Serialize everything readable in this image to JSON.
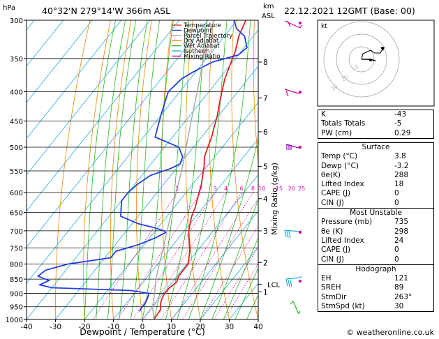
{
  "header": {
    "hpa_label": "hPa",
    "location": "40°32'N  279°14'W  366m  ASL",
    "km_label": "km",
    "asl_label": "ASL",
    "datetime": "22.12.2021  12GMT  (Base: 00)"
  },
  "footer": {
    "copyright": "© weatheronline.co.uk"
  },
  "hodograph": {
    "label": "kt",
    "ring_labels": [
      "10",
      "20",
      "30"
    ]
  },
  "indices": {
    "rows": [
      {
        "label": "K",
        "value": "-43"
      },
      {
        "label": "Totals Totals",
        "value": "-5"
      },
      {
        "label": "PW (cm)",
        "value": "0.29"
      }
    ]
  },
  "surface": {
    "title": "Surface",
    "rows": [
      {
        "label": "Temp (°C)",
        "value": "3.8"
      },
      {
        "label": "Dewp (°C)",
        "value": "-3.2"
      },
      {
        "label": "θe(K)",
        "value": "288"
      },
      {
        "label": "Lifted Index",
        "value": "18"
      },
      {
        "label": "CAPE (J)",
        "value": "0"
      },
      {
        "label": "CIN (J)",
        "value": "0"
      }
    ]
  },
  "most_unstable": {
    "title": "Most Unstable",
    "rows": [
      {
        "label": "Pressure (mb)",
        "value": "735"
      },
      {
        "label": "θe (K)",
        "value": "298"
      },
      {
        "label": "Lifted Index",
        "value": "24"
      },
      {
        "label": "CAPE (J)",
        "value": "0"
      },
      {
        "label": "CIN (J)",
        "value": "0"
      }
    ]
  },
  "hodo_table": {
    "title": "Hodograph",
    "rows": [
      {
        "label": "EH",
        "value": "121"
      },
      {
        "label": "SREH",
        "value": "89"
      },
      {
        "label": "StmDir",
        "value": "263°"
      },
      {
        "label": "StmSpd (kt)",
        "value": "30"
      }
    ]
  },
  "chart_data": {
    "type": "line",
    "title": "",
    "xlabel": "Dewpoint / Temperature (°C)",
    "ylabel": "",
    "secondary_ylabel": "Mixing Ratio (g/kg)",
    "xlim": [
      -40,
      40
    ],
    "ylim": [
      1000,
      300
    ],
    "y_scale": "log",
    "skew": true,
    "x_ticks": [
      -40,
      -30,
      -20,
      -10,
      0,
      10,
      20,
      30,
      40
    ],
    "pressure_ticks": [
      300,
      350,
      400,
      450,
      500,
      550,
      600,
      650,
      700,
      750,
      800,
      850,
      900,
      950,
      1000
    ],
    "km_ticks": [
      {
        "label": "8",
        "p": 355
      },
      {
        "label": "7",
        "p": 410
      },
      {
        "label": "6",
        "p": 470
      },
      {
        "label": "5",
        "p": 540
      },
      {
        "label": "4",
        "p": 615
      },
      {
        "label": "3",
        "p": 700
      },
      {
        "label": "2",
        "p": 795
      },
      {
        "label": "1",
        "p": 895
      }
    ],
    "lcl": {
      "label": "LCL",
      "p": 868
    },
    "mixing_ratio_labels": [
      "1",
      "2",
      "3",
      "4",
      "6",
      "8",
      "10",
      "15",
      "20",
      "25"
    ],
    "legend": {
      "placement": "top-center",
      "entries": [
        {
          "name": "Temperature",
          "color": "#e02020"
        },
        {
          "name": "Dewpoint",
          "color": "#2040e0"
        },
        {
          "name": "Parcel Trajectory",
          "color": "#aaaaaa"
        },
        {
          "name": "Dry Adiabat",
          "color": "#ee8800"
        },
        {
          "name": "Wet Adiabat",
          "color": "#22bb22"
        },
        {
          "name": "Isotherm",
          "color": "#22aadd"
        },
        {
          "name": "Mixing Ratio",
          "color": "#dd00aa"
        }
      ]
    },
    "series": [
      {
        "name": "Temperature",
        "color": "#e02020",
        "points": [
          [
            1000,
            4
          ],
          [
            980,
            3.8
          ],
          [
            960,
            3.5
          ],
          [
            940,
            2
          ],
          [
            920,
            1
          ],
          [
            900,
            0.5
          ],
          [
            880,
            0.6
          ],
          [
            860,
            1.5
          ],
          [
            840,
            0.5
          ],
          [
            820,
            0.5
          ],
          [
            800,
            0.5
          ],
          [
            780,
            -1
          ],
          [
            760,
            -2.5
          ],
          [
            740,
            -4.5
          ],
          [
            720,
            -6.5
          ],
          [
            700,
            -8.5
          ],
          [
            680,
            -10
          ],
          [
            660,
            -11.5
          ],
          [
            640,
            -12.5
          ],
          [
            620,
            -14
          ],
          [
            600,
            -15.5
          ],
          [
            580,
            -17
          ],
          [
            560,
            -19
          ],
          [
            540,
            -21
          ],
          [
            520,
            -23.5
          ],
          [
            500,
            -25
          ],
          [
            480,
            -26.5
          ],
          [
            460,
            -28.5
          ],
          [
            440,
            -30.5
          ],
          [
            420,
            -33
          ],
          [
            400,
            -35.5
          ],
          [
            380,
            -38
          ],
          [
            360,
            -40
          ],
          [
            340,
            -42
          ],
          [
            320,
            -45
          ],
          [
            300,
            -47
          ]
        ]
      },
      {
        "name": "Dewpoint",
        "color": "#2040e0",
        "points": [
          [
            968,
            -3.2
          ],
          [
            955,
            -3.5
          ],
          [
            940,
            -3.5
          ],
          [
            920,
            -4
          ],
          [
            900,
            -5
          ],
          [
            890,
            -12
          ],
          [
            880,
            -40
          ],
          [
            870,
            -45
          ],
          [
            855,
            -43
          ],
          [
            840,
            -48
          ],
          [
            820,
            -47
          ],
          [
            800,
            -41
          ],
          [
            780,
            -28
          ],
          [
            760,
            -28
          ],
          [
            740,
            -22
          ],
          [
            720,
            -18
          ],
          [
            705,
            -16
          ],
          [
            700,
            -17
          ],
          [
            690,
            -22
          ],
          [
            680,
            -28
          ],
          [
            660,
            -36
          ],
          [
            640,
            -38
          ],
          [
            620,
            -40
          ],
          [
            600,
            -40
          ],
          [
            580,
            -39
          ],
          [
            560,
            -37
          ],
          [
            545,
            -32
          ],
          [
            535,
            -30
          ],
          [
            520,
            -31
          ],
          [
            500,
            -35
          ],
          [
            480,
            -46
          ],
          [
            460,
            -48
          ],
          [
            440,
            -50
          ],
          [
            420,
            -52
          ],
          [
            400,
            -54
          ],
          [
            380,
            -53
          ],
          [
            370,
            -51
          ],
          [
            355,
            -47
          ],
          [
            345,
            -40
          ],
          [
            335,
            -39
          ],
          [
            320,
            -43
          ],
          [
            310,
            -48
          ],
          [
            300,
            -51
          ]
        ]
      },
      {
        "name": "Parcel Trajectory",
        "color": "#aaaaaa",
        "points": [
          [
            1000,
            4
          ],
          [
            950,
            0
          ],
          [
            900,
            -3
          ],
          [
            868,
            -5.2
          ],
          [
            850,
            -6.5
          ],
          [
            800,
            -9.5
          ],
          [
            750,
            -12.5
          ],
          [
            700,
            -16
          ],
          [
            650,
            -19.5
          ],
          [
            600,
            -23.5
          ],
          [
            550,
            -27.5
          ],
          [
            500,
            -32.5
          ],
          [
            450,
            -38
          ],
          [
            400,
            -44
          ],
          [
            350,
            -51
          ],
          [
            300,
            -58
          ]
        ]
      }
    ]
  }
}
